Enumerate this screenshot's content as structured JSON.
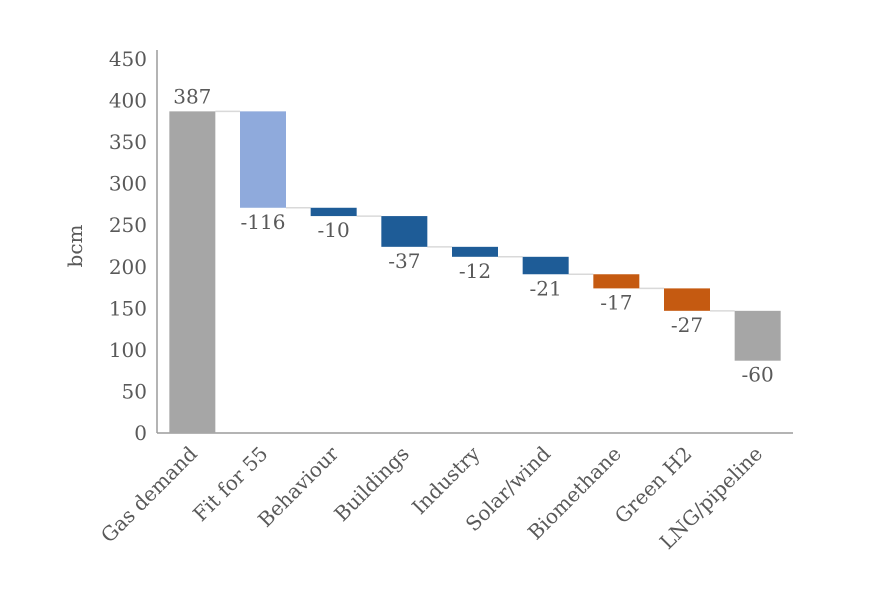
{
  "chart_data": {
    "type": "bar",
    "subtype": "waterfall",
    "title": "",
    "ylabel": "bcm",
    "xlabel": "",
    "ylim": [
      0,
      450
    ],
    "yticks": [
      0,
      50,
      100,
      150,
      200,
      250,
      300,
      350,
      400,
      450
    ],
    "grid": false,
    "legend": false,
    "categories": [
      "Gas demand",
      "Fit for 55",
      "Behaviour",
      "Buildings",
      "Industry",
      "Solar/wind",
      "Biomethane",
      "Green H2",
      "LNG/pipeline"
    ],
    "values": [
      387,
      -116,
      -10,
      -37,
      -12,
      -21,
      -17,
      -27,
      -60
    ],
    "data_labels": [
      "387",
      "-116",
      "-10",
      "-37",
      "-12",
      "-21",
      "-17",
      "-27",
      "-60"
    ],
    "bar_colors": [
      "#A6A6A6",
      "#8FAADC",
      "#1E5C97",
      "#1E5C97",
      "#1E5C97",
      "#1E5C97",
      "#C55A11",
      "#C55A11",
      "#A6A6A6"
    ],
    "colors": {
      "text": "#595959",
      "axis": "#9B9B9B",
      "connector": "#D9D9D9",
      "background": "#FFFFFF"
    }
  }
}
